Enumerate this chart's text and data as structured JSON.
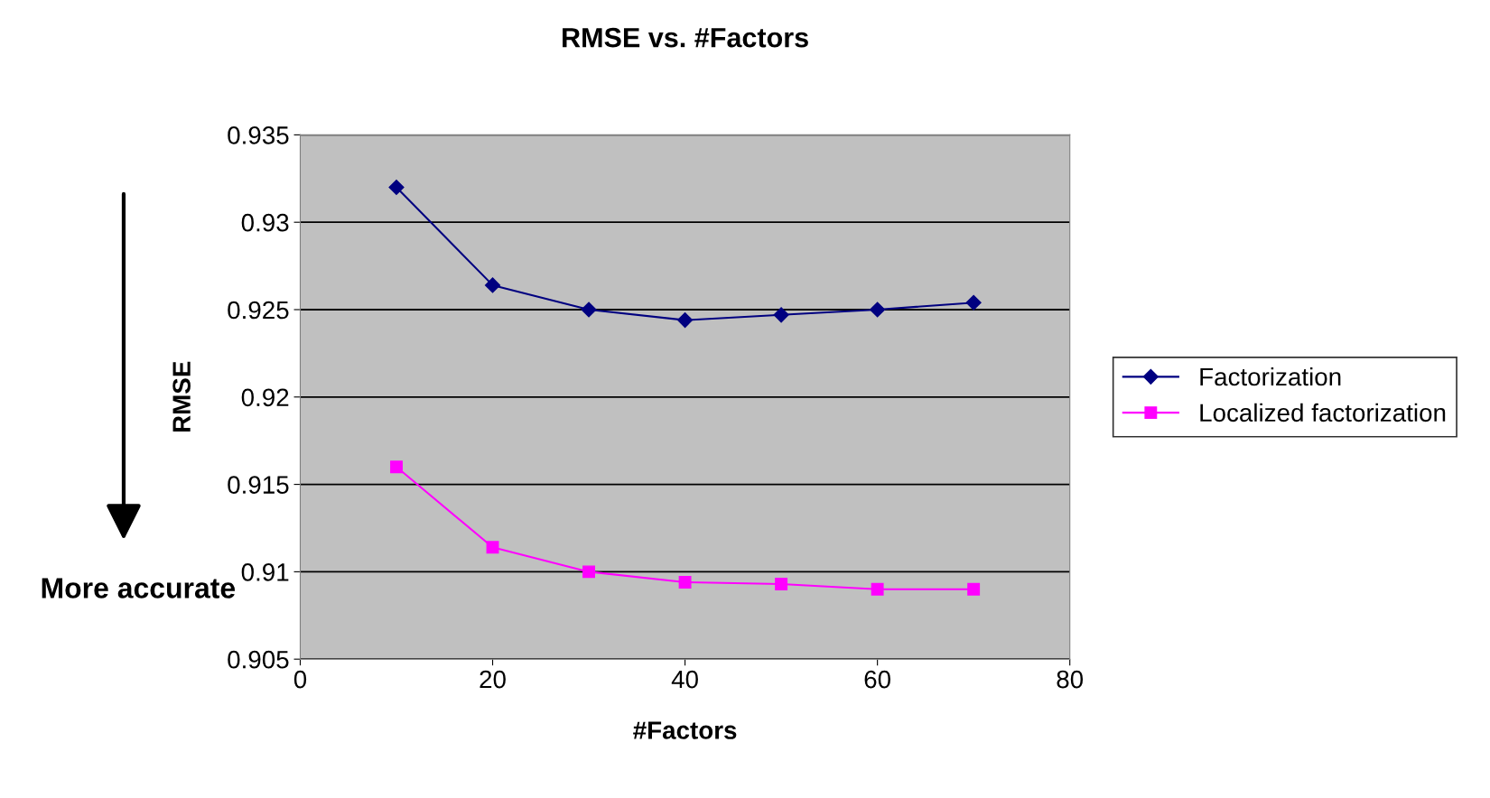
{
  "chart_data": {
    "type": "line",
    "title": "RMSE vs. #Factors",
    "xlabel": "#Factors",
    "ylabel": "RMSE",
    "x": [
      10,
      20,
      30,
      40,
      50,
      60,
      70
    ],
    "series": [
      {
        "name": "Factorization",
        "color": "#000080",
        "marker": "diamond",
        "values": [
          0.932,
          0.9264,
          0.925,
          0.9244,
          0.9247,
          0.925,
          0.9254
        ]
      },
      {
        "name": "Localized factorization",
        "color": "#ff00ff",
        "marker": "square",
        "values": [
          0.916,
          0.9114,
          0.91,
          0.9094,
          0.9093,
          0.909,
          0.909
        ]
      }
    ],
    "xlim": [
      0,
      80
    ],
    "xticks": [
      0,
      20,
      40,
      60,
      80
    ],
    "ylim": [
      0.905,
      0.935
    ],
    "yticks": [
      {
        "value": 0.905,
        "label": "0.905"
      },
      {
        "value": 0.91,
        "label": "0.91"
      },
      {
        "value": 0.915,
        "label": "0.915"
      },
      {
        "value": 0.92,
        "label": "0.92"
      },
      {
        "value": 0.925,
        "label": "0.925"
      },
      {
        "value": 0.93,
        "label": "0.93"
      },
      {
        "value": 0.935,
        "label": "0.935"
      }
    ],
    "grid": "y",
    "legend": "right",
    "line_style": "solid",
    "annotations": [
      "More accurate"
    ]
  }
}
